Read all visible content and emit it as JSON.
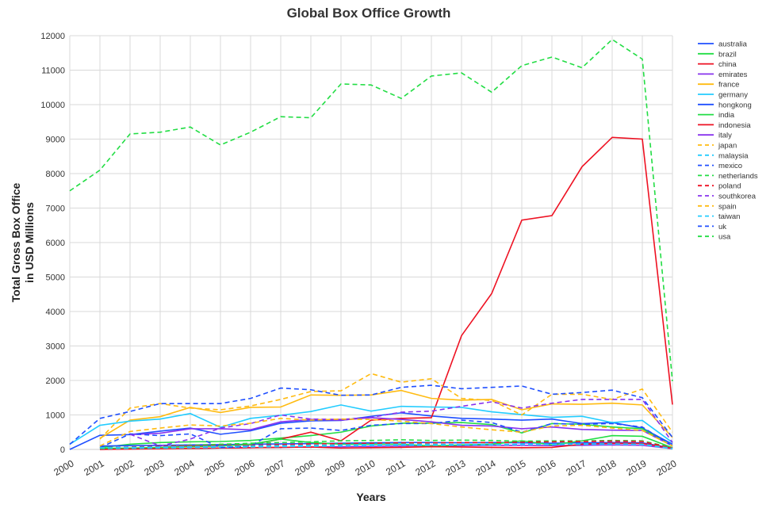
{
  "chart_data": {
    "type": "line",
    "title": "Global Box Office Growth",
    "xlabel": "Years",
    "ylabel": [
      "Total Gross Box Office",
      "in USD Millions"
    ],
    "ylim": [
      0,
      12000
    ],
    "xlim": [
      2000,
      2020
    ],
    "yticks": [
      0,
      1000,
      2000,
      3000,
      4000,
      5000,
      6000,
      7000,
      8000,
      9000,
      10000,
      11000,
      12000
    ],
    "x": [
      2000,
      2001,
      2002,
      2003,
      2004,
      2005,
      2006,
      2007,
      2008,
      2009,
      2010,
      2011,
      2012,
      2013,
      2014,
      2015,
      2016,
      2017,
      2018,
      2019,
      2020
    ],
    "grid": true,
    "legend_position": "right",
    "series": [
      {
        "name": "australia",
        "color": "#1f4fff",
        "dash": false,
        "values": [
          0,
          410,
          430,
          530,
          620,
          440,
          540,
          760,
          830,
          840,
          960,
          1060,
          970,
          900,
          880,
          850,
          880,
          750,
          780,
          620,
          150
        ]
      },
      {
        "name": "brazil",
        "color": "#22dd44",
        "dash": false,
        "values": [
          null,
          50,
          150,
          200,
          220,
          230,
          260,
          330,
          400,
          500,
          680,
          760,
          760,
          780,
          720,
          480,
          750,
          730,
          650,
          600,
          100
        ]
      },
      {
        "name": "china",
        "color": "#ee1122",
        "dash": false,
        "values": [
          null,
          0,
          20,
          60,
          100,
          120,
          140,
          300,
          500,
          250,
          850,
          900,
          920,
          3300,
          4520,
          6650,
          6780,
          8200,
          9050,
          9000,
          1300
        ]
      },
      {
        "name": "emirates",
        "color": "#8833ee",
        "dash": false,
        "values": [
          null,
          null,
          null,
          null,
          30,
          40,
          50,
          60,
          70,
          80,
          90,
          100,
          110,
          110,
          120,
          120,
          110,
          120,
          130,
          120,
          20
        ]
      },
      {
        "name": "france",
        "color": "#ffbb11",
        "dash": false,
        "values": [
          null,
          320,
          850,
          950,
          1220,
          1070,
          1220,
          1230,
          1580,
          1570,
          1580,
          1710,
          1480,
          1430,
          1450,
          1150,
          1320,
          1310,
          1340,
          1290,
          350
        ]
      },
      {
        "name": "germany",
        "color": "#22ccff",
        "dash": false,
        "values": [
          150,
          700,
          820,
          880,
          1040,
          640,
          900,
          990,
          1100,
          1290,
          1110,
          1250,
          1230,
          1220,
          1090,
          1010,
          930,
          960,
          780,
          840,
          200
        ]
      },
      {
        "name": "hongkong",
        "color": "#1f4fff",
        "dash": false,
        "values": [
          null,
          100,
          110,
          120,
          130,
          140,
          150,
          160,
          170,
          180,
          190,
          200,
          200,
          190,
          200,
          190,
          180,
          190,
          200,
          190,
          40
        ]
      },
      {
        "name": "india",
        "color": "#22dd44",
        "dash": false,
        "values": [
          null,
          30,
          40,
          60,
          80,
          100,
          150,
          300,
          200,
          150,
          150,
          150,
          100,
          130,
          150,
          250,
          130,
          250,
          400,
          380,
          50
        ]
      },
      {
        "name": "indonesia",
        "color": "#ee1122",
        "dash": false,
        "values": [
          null,
          0,
          10,
          20,
          30,
          40,
          50,
          60,
          70,
          40,
          50,
          60,
          80,
          70,
          60,
          50,
          60,
          150,
          180,
          170,
          30
        ]
      },
      {
        "name": "italy",
        "color": "#8833ee",
        "dash": false,
        "values": [
          null,
          null,
          430,
          470,
          600,
          600,
          570,
          800,
          870,
          850,
          920,
          870,
          800,
          700,
          680,
          600,
          650,
          580,
          560,
          550,
          100
        ]
      },
      {
        "name": "japan",
        "color": "#ffbb11",
        "dash": true,
        "values": [
          null,
          300,
          1200,
          1330,
          1200,
          1150,
          1260,
          1450,
          1680,
          1700,
          2200,
          1950,
          2050,
          1480,
          1420,
          1000,
          1600,
          1600,
          1450,
          1750,
          500
        ]
      },
      {
        "name": "malaysia",
        "color": "#22ccff",
        "dash": true,
        "values": [
          null,
          20,
          30,
          40,
          50,
          60,
          70,
          80,
          90,
          100,
          110,
          120,
          120,
          130,
          130,
          140,
          140,
          150,
          150,
          140,
          20
        ]
      },
      {
        "name": "mexico",
        "color": "#1f4fff",
        "dash": true,
        "values": [
          null,
          50,
          450,
          400,
          450,
          50,
          100,
          600,
          620,
          550,
          700,
          750,
          750,
          850,
          780,
          500,
          750,
          730,
          750,
          650,
          100
        ]
      },
      {
        "name": "netherlands",
        "color": "#22dd44",
        "dash": true,
        "values": [
          null,
          30,
          60,
          90,
          120,
          150,
          180,
          200,
          220,
          250,
          260,
          280,
          260,
          270,
          260,
          240,
          250,
          250,
          260,
          250,
          50
        ]
      },
      {
        "name": "poland",
        "color": "#ee1122",
        "dash": true,
        "values": [
          null,
          50,
          70,
          90,
          100,
          110,
          120,
          140,
          160,
          170,
          180,
          190,
          190,
          200,
          200,
          210,
          220,
          230,
          240,
          230,
          40
        ]
      },
      {
        "name": "southkorea",
        "color": "#8833ee",
        "dash": true,
        "values": [
          null,
          null,
          440,
          100,
          300,
          620,
          750,
          1000,
          880,
          870,
          930,
          1080,
          1110,
          1250,
          1380,
          1200,
          1340,
          1450,
          1450,
          1450,
          200
        ]
      },
      {
        "name": "spain",
        "color": "#ffbb11",
        "dash": true,
        "values": [
          null,
          100,
          520,
          620,
          710,
          680,
          760,
          900,
          850,
          880,
          870,
          820,
          750,
          650,
          570,
          500,
          680,
          700,
          620,
          550,
          100
        ]
      },
      {
        "name": "taiwan",
        "color": "#22ccff",
        "dash": true,
        "values": [
          null,
          50,
          60,
          70,
          80,
          90,
          100,
          110,
          120,
          130,
          140,
          150,
          150,
          140,
          140,
          150,
          150,
          160,
          160,
          150,
          30
        ]
      },
      {
        "name": "uk",
        "color": "#1f4fff",
        "dash": true,
        "values": [
          150,
          900,
          1100,
          1330,
          1330,
          1330,
          1480,
          1780,
          1730,
          1570,
          1580,
          1800,
          1860,
          1760,
          1800,
          1840,
          1600,
          1650,
          1720,
          1500,
          350
        ]
      },
      {
        "name": "usa",
        "color": "#22dd44",
        "dash": true,
        "values": [
          7500,
          8100,
          9150,
          9200,
          9350,
          8830,
          9200,
          9650,
          9620,
          10600,
          10570,
          10180,
          10830,
          10920,
          10360,
          11130,
          11380,
          11070,
          11890,
          11320,
          1980
        ]
      }
    ]
  }
}
